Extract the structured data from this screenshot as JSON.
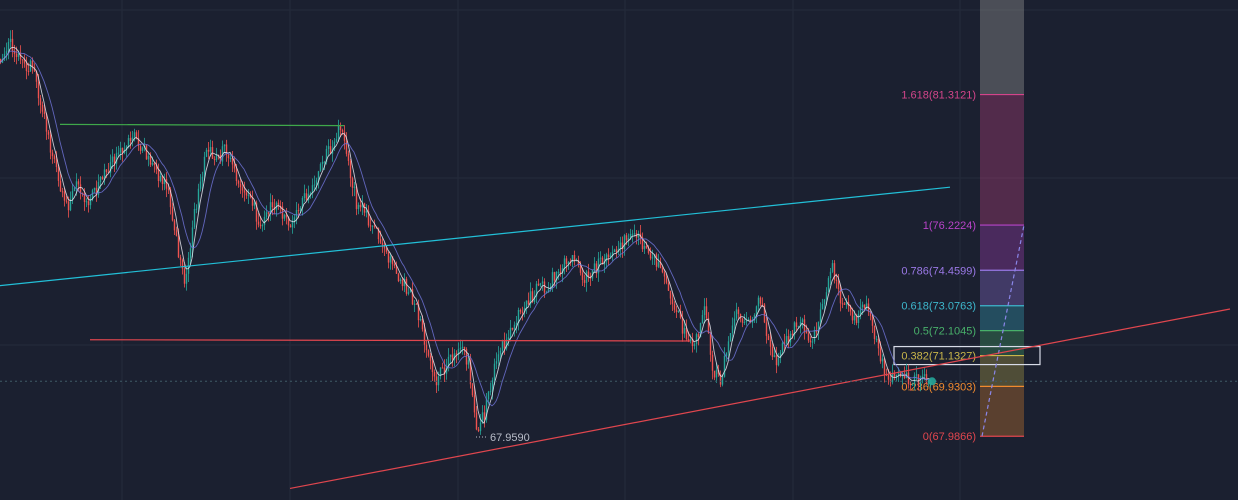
{
  "colors": {
    "background": "#1b2030",
    "grid": "#252b3b",
    "bull": "#26a69a",
    "bear": "#ef5350",
    "ma_fast": "#e8e8f0",
    "ma_slow": "#6f73d6",
    "channel_upper": "#22c0d8",
    "channel_lower": "#e0464e",
    "support_line": "#e0464e",
    "resistance_line": "#3fa84a",
    "current_price_line": "#3f5a66",
    "fib_target_band": "#8e8e8e"
  },
  "chart_data": {
    "type": "candlestick",
    "ylim": [
      65.5,
      85.0
    ],
    "x_bars": 465,
    "grid": true,
    "low_marker": {
      "bar": 238,
      "price": 67.959,
      "label": "67.9590"
    },
    "current_price": 70.13,
    "trendlines": [
      {
        "name": "channel-upper",
        "x1": -20,
        "y1": 73.7,
        "x2": 475,
        "y2": 77.7
      },
      {
        "name": "channel-lower",
        "x1": 145,
        "y1": 65.95,
        "x2": 615,
        "y2": 72.95
      },
      {
        "name": "support-horizontal",
        "x1": 45,
        "y1": 71.75,
        "x2": 345,
        "y2": 71.7
      },
      {
        "name": "resistance-horizontal",
        "x1": 30,
        "y1": 80.15,
        "x2": 172,
        "y2": 80.1
      }
    ],
    "fib_retracement": {
      "bar_start": 490,
      "bar_end": 512,
      "levels": [
        {
          "label": "1.618(81.3121)",
          "ratio": 1.618,
          "price": 81.3121,
          "color": "#d3458a"
        },
        {
          "label": "1(76.2224)",
          "ratio": 1,
          "price": 76.2224,
          "color": "#b843c8"
        },
        {
          "label": "0.786(74.4599)",
          "ratio": 0.786,
          "price": 74.4599,
          "color": "#9a78e6"
        },
        {
          "label": "0.618(73.0763)",
          "ratio": 0.618,
          "price": 73.0763,
          "color": "#3db7cc"
        },
        {
          "label": "0.5(72.1045)",
          "ratio": 0.5,
          "price": 72.1045,
          "color": "#48b06a"
        },
        {
          "label": "0.382(71.1327)",
          "ratio": 0.382,
          "price": 71.1327,
          "color": "#c9b64a"
        },
        {
          "label": "0.236(69.9303)",
          "ratio": 0.236,
          "price": 69.9303,
          "color": "#f08a2e"
        },
        {
          "label": "0(67.9866)",
          "ratio": 0,
          "price": 67.9866,
          "color": "#e0464e"
        }
      ],
      "highlighted_level": "0.382(71.1327)"
    },
    "price_path": [
      [
        0,
        82.7
      ],
      [
        5,
        83.3
      ],
      [
        10,
        82.6
      ],
      [
        16,
        82.4
      ],
      [
        22,
        80.3
      ],
      [
        28,
        78.3
      ],
      [
        33,
        76.9
      ],
      [
        38,
        77.7
      ],
      [
        44,
        77.1
      ],
      [
        50,
        77.9
      ],
      [
        56,
        78.7
      ],
      [
        62,
        79.2
      ],
      [
        66,
        79.7
      ],
      [
        72,
        79.1
      ],
      [
        78,
        78.2
      ],
      [
        84,
        77.7
      ],
      [
        88,
        75.6
      ],
      [
        92,
        73.9
      ],
      [
        96,
        76.1
      ],
      [
        100,
        78.1
      ],
      [
        104,
        79.2
      ],
      [
        108,
        78.8
      ],
      [
        112,
        79.1
      ],
      [
        116,
        78.7
      ],
      [
        120,
        77.7
      ],
      [
        126,
        77.1
      ],
      [
        130,
        76.1
      ],
      [
        136,
        77.1
      ],
      [
        141,
        76.6
      ],
      [
        146,
        76.3
      ],
      [
        152,
        77.2
      ],
      [
        158,
        78.1
      ],
      [
        162,
        78.8
      ],
      [
        166,
        79.4
      ],
      [
        170,
        80.0
      ],
      [
        174,
        78.7
      ],
      [
        178,
        77.1
      ],
      [
        182,
        76.7
      ],
      [
        186,
        76.2
      ],
      [
        190,
        75.6
      ],
      [
        196,
        74.7
      ],
      [
        202,
        73.9
      ],
      [
        208,
        73.1
      ],
      [
        214,
        71.1
      ],
      [
        218,
        70.1
      ],
      [
        222,
        70.7
      ],
      [
        226,
        71.1
      ],
      [
        230,
        71.4
      ],
      [
        234,
        70.9
      ],
      [
        238,
        68.3
      ],
      [
        242,
        68.9
      ],
      [
        246,
        70.3
      ],
      [
        250,
        71.4
      ],
      [
        256,
        72.2
      ],
      [
        262,
        73.1
      ],
      [
        268,
        73.7
      ],
      [
        274,
        73.9
      ],
      [
        280,
        74.6
      ],
      [
        286,
        74.8
      ],
      [
        292,
        74.2
      ],
      [
        298,
        74.6
      ],
      [
        304,
        74.9
      ],
      [
        310,
        75.4
      ],
      [
        316,
        76.0
      ],
      [
        322,
        75.4
      ],
      [
        328,
        74.7
      ],
      [
        334,
        73.7
      ],
      [
        340,
        72.4
      ],
      [
        344,
        71.6
      ],
      [
        348,
        71.8
      ],
      [
        352,
        73.1
      ],
      [
        356,
        70.7
      ],
      [
        360,
        70.1
      ],
      [
        364,
        71.7
      ],
      [
        368,
        72.9
      ],
      [
        372,
        72.4
      ],
      [
        376,
        72.7
      ],
      [
        380,
        73.3
      ],
      [
        384,
        71.6
      ],
      [
        388,
        70.8
      ],
      [
        392,
        71.6
      ],
      [
        396,
        72.1
      ],
      [
        400,
        72.6
      ],
      [
        404,
        71.8
      ],
      [
        408,
        72.1
      ],
      [
        412,
        73.3
      ],
      [
        416,
        74.6
      ],
      [
        420,
        73.2
      ],
      [
        424,
        72.9
      ],
      [
        428,
        72.6
      ],
      [
        432,
        73.1
      ],
      [
        436,
        72.3
      ],
      [
        440,
        71.1
      ],
      [
        444,
        70.2
      ]
    ]
  }
}
